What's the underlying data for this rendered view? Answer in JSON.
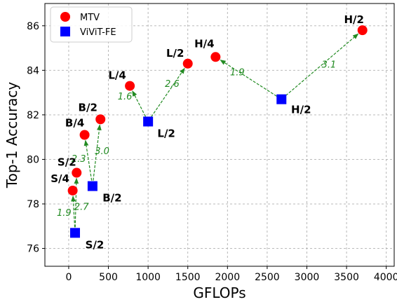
{
  "chart_data": {
    "type": "scatter",
    "xlabel": "GFLOPs",
    "ylabel": "Top-1 Accuracy",
    "xlim": [
      -300,
      4100
    ],
    "ylim": [
      75.2,
      87.0
    ],
    "xticks": [
      "0",
      "500",
      "1000",
      "1500",
      "2000",
      "2500",
      "3000",
      "3500",
      "4000"
    ],
    "xtick_values": [
      0,
      500,
      1000,
      1500,
      2000,
      2500,
      3000,
      3500,
      4000
    ],
    "yticks": [
      "76",
      "78",
      "80",
      "82",
      "84",
      "86"
    ],
    "ytick_values": [
      76,
      78,
      80,
      82,
      84,
      86
    ],
    "grid": true,
    "legend": {
      "placement": "top-left",
      "entries": [
        {
          "name": "MTV",
          "marker": "circle",
          "color": "#ff0000"
        },
        {
          "name": "ViViT-FE",
          "marker": "square",
          "color": "#0000ff"
        }
      ]
    },
    "series": [
      {
        "name": "MTV",
        "color": "#ff0000",
        "marker": "circle",
        "points": [
          {
            "label": "S/4",
            "x": 50,
            "y": 78.6
          },
          {
            "label": "S/2",
            "x": 100,
            "y": 79.4
          },
          {
            "label": "B/4",
            "x": 200,
            "y": 81.1
          },
          {
            "label": "B/2",
            "x": 400,
            "y": 81.8
          },
          {
            "label": "L/4",
            "x": 770,
            "y": 83.3
          },
          {
            "label": "L/2",
            "x": 1500,
            "y": 84.3
          },
          {
            "label": "H/4",
            "x": 1850,
            "y": 84.6
          },
          {
            "label": "H/2",
            "x": 3700,
            "y": 85.8
          }
        ]
      },
      {
        "name": "ViViT-FE",
        "color": "#0000ff",
        "marker": "square",
        "points": [
          {
            "label": "S/2",
            "x": 80,
            "y": 76.7
          },
          {
            "label": "B/2",
            "x": 300,
            "y": 78.8
          },
          {
            "label": "L/2",
            "x": 1000,
            "y": 81.7
          },
          {
            "label": "H/2",
            "x": 2680,
            "y": 82.7
          }
        ]
      }
    ],
    "arrows": [
      {
        "from": [
          80,
          76.7
        ],
        "to": [
          50,
          78.6
        ],
        "label": "1.9"
      },
      {
        "from": [
          80,
          76.7
        ],
        "to": [
          100,
          79.4
        ],
        "label": "2.7"
      },
      {
        "from": [
          300,
          78.8
        ],
        "to": [
          200,
          81.1
        ],
        "label": "2.3"
      },
      {
        "from": [
          300,
          78.8
        ],
        "to": [
          400,
          81.8
        ],
        "label": "3.0"
      },
      {
        "from": [
          1000,
          81.7
        ],
        "to": [
          770,
          83.3
        ],
        "label": "1.6"
      },
      {
        "from": [
          1000,
          81.7
        ],
        "to": [
          1500,
          84.3
        ],
        "label": "2.6"
      },
      {
        "from": [
          2680,
          82.7
        ],
        "to": [
          1850,
          84.6
        ],
        "label": "1.9"
      },
      {
        "from": [
          2680,
          82.7
        ],
        "to": [
          3700,
          85.8
        ],
        "label": "3.1"
      }
    ],
    "arrow_color": "#228b22"
  }
}
